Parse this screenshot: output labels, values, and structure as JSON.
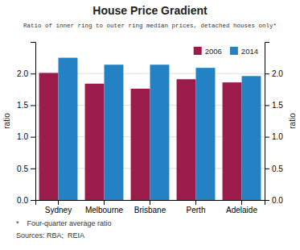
{
  "chart_data": {
    "type": "bar",
    "title": "House Price Gradient",
    "subtitle": "Ratio of inner ring to outer ring median prices, detached houses only*",
    "categories": [
      "Sydney",
      "Melbourne",
      "Brisbane",
      "Perth",
      "Adelaide"
    ],
    "series": [
      {
        "name": "2006",
        "color": "#9B1B4A",
        "values": [
          2.01,
          1.84,
          1.76,
          1.91,
          1.86
        ]
      },
      {
        "name": "2014",
        "color": "#2482C4",
        "values": [
          2.25,
          2.14,
          2.14,
          2.09,
          1.96
        ]
      }
    ],
    "ylabel": "ratio",
    "y2label": "ratio",
    "ylim": [
      0.0,
      2.5
    ],
    "yticks": [
      {
        "value": 0.0,
        "label": "0.0"
      },
      0.5,
      {
        "value": 1.0,
        "label": "1.0"
      },
      1.5,
      {
        "value": 2.0,
        "label": "2.0"
      }
    ],
    "y2lim": [
      0.0,
      2.5
    ],
    "y2ticks": [
      {
        "value": 0.0,
        "label": "0.0"
      },
      0.5,
      {
        "value": 1.0,
        "label": "1.0"
      },
      1.5,
      {
        "value": 2.0,
        "label": "2.0"
      }
    ],
    "grid": true,
    "legend": "upper right",
    "annotations": [
      "*    Four-quarter average ratio",
      "Sources: RBA;  REIA"
    ]
  }
}
